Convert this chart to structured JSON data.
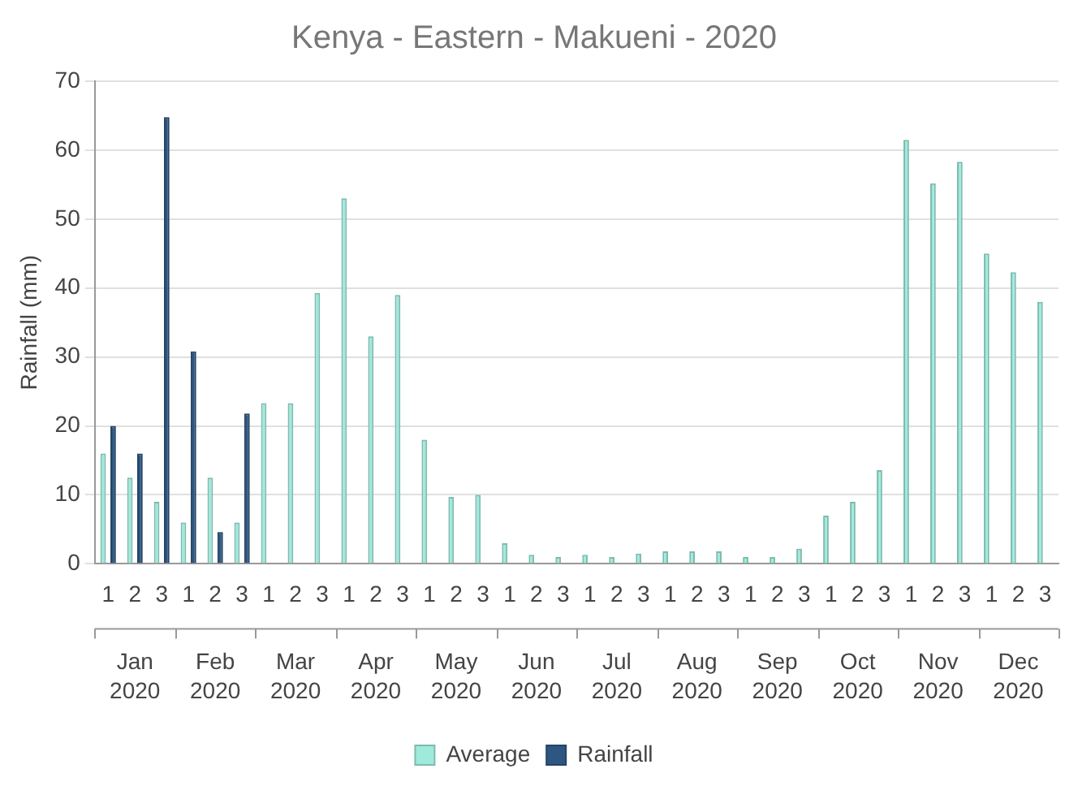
{
  "chart_data": {
    "type": "bar",
    "title": "Kenya - Eastern - Makueni - 2020",
    "ylabel": "Rainfall (mm)",
    "categories": [
      "1",
      "2",
      "3",
      "1",
      "2",
      "3",
      "1",
      "2",
      "3",
      "1",
      "2",
      "3",
      "1",
      "2",
      "3",
      "1",
      "2",
      "3",
      "1",
      "2",
      "3",
      "1",
      "2",
      "3",
      "1",
      "2",
      "3",
      "1",
      "2",
      "3",
      "1",
      "2",
      "3",
      "1",
      "2",
      "3"
    ],
    "annotations": [
      "Jan 2020",
      "Feb 2020",
      "Mar 2020",
      "Apr 2020",
      "May 2020",
      "Jun 2020",
      "Jul 2020",
      "Aug 2020",
      "Sep 2020",
      "Oct 2020",
      "Nov 2020",
      "Dec 2020"
    ],
    "series": [
      {
        "name": "Average",
        "color": "#9eeadb",
        "values": [
          16,
          12.5,
          9,
          6,
          12.5,
          6,
          23.3,
          23.3,
          39.3,
          53,
          33,
          39,
          18,
          9.7,
          10,
          3,
          1.3,
          1,
          1.3,
          1,
          1.5,
          1.8,
          1.8,
          1.8,
          1,
          1,
          2.2,
          7,
          9,
          13.6,
          61.5,
          55.2,
          58.3,
          45,
          42.3,
          38
        ]
      },
      {
        "name": "Rainfall",
        "color": "#2d5680",
        "values": [
          20,
          16,
          64.8,
          30.8,
          4.6,
          21.8,
          null,
          null,
          null,
          null,
          null,
          null,
          null,
          null,
          null,
          null,
          null,
          null,
          null,
          null,
          null,
          null,
          null,
          null,
          null,
          null,
          null,
          null,
          null,
          null,
          null,
          null,
          null,
          null,
          null,
          null
        ]
      }
    ],
    "ylim": [
      0,
      70
    ],
    "yticks": [
      0,
      10,
      20,
      30,
      40,
      50,
      60,
      70
    ],
    "grid": "y",
    "legend": "bottom"
  }
}
